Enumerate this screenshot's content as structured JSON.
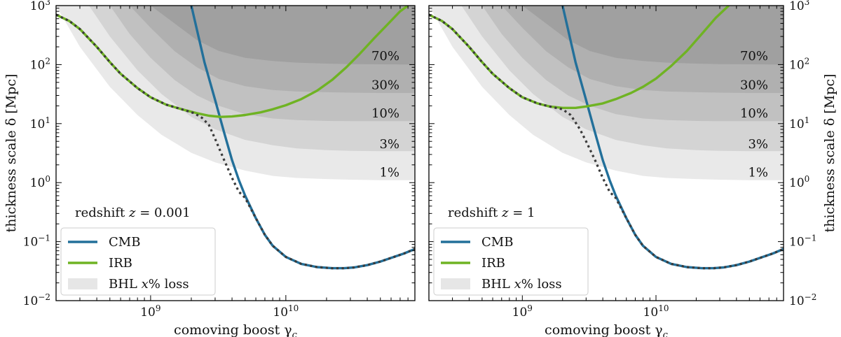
{
  "colors": {
    "cmb": "#23709a",
    "irb": "#6fb323",
    "total": "#3a3a3a",
    "band_fill": "#000000",
    "frame": "#000000",
    "legend_patch": "#e6e6e6"
  },
  "chart_data": [
    {
      "type": "line",
      "xscale": "log",
      "yscale": "log",
      "xlim": [
        200000000,
        90000000000
      ],
      "ylim": [
        0.01,
        1000
      ],
      "xlabel": "comoving boost γ",
      "xlabel_sub": "c",
      "ylabel": "thickness scale δ [Mpc]",
      "ylabel_side": "left",
      "x_ticks": [
        {
          "value": 1000000000,
          "base": "10",
          "exp": "9"
        },
        {
          "value": 10000000000,
          "base": "10",
          "exp": "10"
        }
      ],
      "y_ticks": [
        {
          "value": 0.01,
          "base": "10",
          "exp": "−2"
        },
        {
          "value": 0.1,
          "base": "10",
          "exp": "−1"
        },
        {
          "value": 1,
          "base": "10",
          "exp": "0"
        },
        {
          "value": 10,
          "base": "10",
          "exp": "1"
        },
        {
          "value": 100,
          "base": "10",
          "exp": "2"
        },
        {
          "value": 1000,
          "base": "10",
          "exp": "3"
        }
      ],
      "redshift_prefix": "redshift ",
      "redshift_var": "z",
      "redshift_value": " = 0.001",
      "bands": [
        {
          "label": "1%",
          "label_y": 1.5,
          "x": [
            200000000,
            300000000,
            500000000,
            800000000,
            1200000000,
            2000000000,
            3000000000,
            5000000000,
            8000000000,
            12000000000,
            20000000000,
            30000000000,
            50000000000,
            90000000000
          ],
          "y": [
            1000,
            200,
            42,
            14,
            6.5,
            3.2,
            2.2,
            1.6,
            1.3,
            1.2,
            1.15,
            1.12,
            1.1,
            1.1
          ]
        },
        {
          "label": "3%",
          "label_y": 4.5,
          "x": [
            350000000,
            500000000,
            800000000,
            1200000000,
            2000000000,
            3000000000,
            5000000000,
            8000000000,
            12000000000,
            20000000000,
            30000000000,
            50000000000,
            90000000000
          ],
          "y": [
            1000,
            300,
            80,
            32,
            13,
            8,
            5.3,
            4.3,
            3.8,
            3.55,
            3.45,
            3.4,
            3.4
          ]
        },
        {
          "label": "10%",
          "label_y": 15,
          "x": [
            500000000,
            700000000,
            1000000000,
            1500000000,
            2200000000,
            3200000000,
            5000000000,
            8000000000,
            12000000000,
            20000000000,
            30000000000,
            50000000000,
            90000000000
          ],
          "y": [
            1000,
            330,
            130,
            55,
            30,
            20,
            14.5,
            12.2,
            11.5,
            11.1,
            11,
            11,
            11
          ]
        },
        {
          "label": "30%",
          "label_y": 45,
          "x": [
            700000000,
            1000000000,
            1500000000,
            2200000000,
            3200000000,
            5000000000,
            8000000000,
            12000000000,
            20000000000,
            30000000000,
            50000000000,
            90000000000
          ],
          "y": [
            1000,
            420,
            170,
            90,
            57,
            43,
            37,
            35,
            34,
            33.5,
            33,
            33
          ]
        },
        {
          "label": "70%",
          "label_y": 140,
          "x": [
            1000000000,
            1500000000,
            2200000000,
            3200000000,
            5000000000,
            8000000000,
            12000000000,
            20000000000,
            30000000000,
            50000000000,
            90000000000
          ],
          "y": [
            1000,
            500,
            260,
            170,
            130,
            115,
            108,
            104,
            102,
            101,
            100
          ]
        }
      ],
      "series": [
        {
          "name": "CMB",
          "role": "cmb",
          "x": [
            2000000000,
            2500000000,
            3000000000,
            3500000000,
            4000000000,
            4500000000,
            5000000000,
            6000000000,
            7000000000,
            8000000000,
            10000000000,
            13000000000,
            17000000000,
            22000000000,
            27000000000,
            32000000000,
            40000000000,
            50000000000,
            60000000000,
            75000000000,
            90000000000
          ],
          "y": [
            1000,
            110,
            25,
            7,
            2.4,
            1.1,
            0.6,
            0.25,
            0.13,
            0.085,
            0.055,
            0.042,
            0.037,
            0.0355,
            0.0355,
            0.0365,
            0.04,
            0.046,
            0.053,
            0.063,
            0.075
          ]
        },
        {
          "name": "IRB",
          "role": "irb",
          "x": [
            200000000,
            250000000,
            300000000,
            400000000,
            500000000,
            600000000,
            800000000,
            1000000000,
            1300000000,
            1700000000,
            2200000000,
            2700000000,
            3300000000,
            4000000000,
            5000000000,
            6500000000,
            8000000000,
            10000000000,
            13000000000,
            17000000000,
            22000000000,
            28000000000,
            35000000000,
            45000000000,
            55000000000,
            70000000000,
            80000000000
          ],
          "y": [
            700,
            550,
            400,
            200,
            110,
            70,
            40,
            28,
            21,
            17.5,
            15,
            13.6,
            13,
            13.2,
            14,
            15.5,
            17.5,
            20.5,
            26,
            36,
            55,
            90,
            150,
            280,
            450,
            800,
            1000
          ]
        },
        {
          "name": "total",
          "role": "total",
          "dashed": true,
          "x": [
            200000000,
            250000000,
            300000000,
            400000000,
            500000000,
            600000000,
            800000000,
            1000000000,
            1300000000,
            1700000000,
            2100000000,
            2400000000,
            2700000000,
            3000000000,
            3500000000,
            4000000000,
            4500000000,
            5000000000,
            6000000000,
            7000000000,
            8000000000,
            10000000000,
            13000000000,
            17000000000,
            22000000000,
            27000000000,
            32000000000,
            40000000000,
            50000000000,
            60000000000,
            75000000000,
            90000000000
          ],
          "y": [
            700,
            550,
            400,
            200,
            110,
            70,
            40,
            28,
            21,
            17.5,
            15,
            12.5,
            9.5,
            5.5,
            2.4,
            1.2,
            0.7,
            0.55,
            0.25,
            0.13,
            0.085,
            0.055,
            0.042,
            0.037,
            0.0355,
            0.0355,
            0.0365,
            0.04,
            0.046,
            0.053,
            0.063,
            0.075
          ]
        }
      ],
      "legend": [
        {
          "label": "CMB",
          "kind": "line",
          "role": "cmb"
        },
        {
          "label": "IRB",
          "kind": "line",
          "role": "irb"
        },
        {
          "label": "BHL x% loss",
          "kind": "patch",
          "role": "band"
        }
      ]
    },
    {
      "type": "line",
      "xscale": "log",
      "yscale": "log",
      "xlim": [
        200000000,
        90000000000
      ],
      "ylim": [
        0.01,
        1000
      ],
      "xlabel": "comoving boost γ",
      "xlabel_sub": "c",
      "ylabel": "thickness scale δ [Mpc]",
      "ylabel_side": "right",
      "x_ticks": [
        {
          "value": 1000000000,
          "base": "10",
          "exp": "9"
        },
        {
          "value": 10000000000,
          "base": "10",
          "exp": "10"
        }
      ],
      "y_ticks": [
        {
          "value": 0.01,
          "base": "10",
          "exp": "−2"
        },
        {
          "value": 0.1,
          "base": "10",
          "exp": "−1"
        },
        {
          "value": 1,
          "base": "10",
          "exp": "0"
        },
        {
          "value": 10,
          "base": "10",
          "exp": "1"
        },
        {
          "value": 100,
          "base": "10",
          "exp": "2"
        },
        {
          "value": 1000,
          "base": "10",
          "exp": "3"
        }
      ],
      "redshift_prefix": "redshift ",
      "redshift_var": "z",
      "redshift_value": " = 1",
      "bands": [
        {
          "label": "1%",
          "label_y": 1.5,
          "x": [
            200000000,
            300000000,
            500000000,
            800000000,
            1200000000,
            2000000000,
            3000000000,
            5000000000,
            8000000000,
            12000000000,
            20000000000,
            30000000000,
            50000000000,
            90000000000
          ],
          "y": [
            1000,
            200,
            42,
            14,
            6.5,
            3.2,
            2.2,
            1.6,
            1.3,
            1.2,
            1.15,
            1.12,
            1.1,
            1.1
          ]
        },
        {
          "label": "3%",
          "label_y": 4.5,
          "x": [
            350000000,
            500000000,
            800000000,
            1200000000,
            2000000000,
            3000000000,
            5000000000,
            8000000000,
            12000000000,
            20000000000,
            30000000000,
            50000000000,
            90000000000
          ],
          "y": [
            1000,
            300,
            80,
            32,
            13,
            8,
            5.3,
            4.3,
            3.8,
            3.55,
            3.45,
            3.4,
            3.4
          ]
        },
        {
          "label": "10%",
          "label_y": 15,
          "x": [
            500000000,
            700000000,
            1000000000,
            1500000000,
            2200000000,
            3200000000,
            5000000000,
            8000000000,
            12000000000,
            20000000000,
            30000000000,
            50000000000,
            90000000000
          ],
          "y": [
            1000,
            330,
            130,
            55,
            30,
            20,
            14.5,
            12.2,
            11.5,
            11.1,
            11,
            11,
            11
          ]
        },
        {
          "label": "30%",
          "label_y": 45,
          "x": [
            700000000,
            1000000000,
            1500000000,
            2200000000,
            3200000000,
            5000000000,
            8000000000,
            12000000000,
            20000000000,
            30000000000,
            50000000000,
            90000000000
          ],
          "y": [
            1000,
            420,
            170,
            90,
            57,
            43,
            37,
            35,
            34,
            33.5,
            33,
            33
          ]
        },
        {
          "label": "70%",
          "label_y": 140,
          "x": [
            1000000000,
            1500000000,
            2200000000,
            3200000000,
            5000000000,
            8000000000,
            12000000000,
            20000000000,
            30000000000,
            50000000000,
            90000000000
          ],
          "y": [
            1000,
            500,
            260,
            170,
            130,
            115,
            108,
            104,
            102,
            101,
            100
          ]
        }
      ],
      "series": [
        {
          "name": "CMB",
          "role": "cmb",
          "x": [
            2000000000,
            2500000000,
            3000000000,
            3500000000,
            4000000000,
            4500000000,
            5000000000,
            6000000000,
            7000000000,
            8000000000,
            10000000000,
            13000000000,
            17000000000,
            22000000000,
            27000000000,
            32000000000,
            40000000000,
            50000000000,
            60000000000,
            75000000000,
            90000000000
          ],
          "y": [
            1000,
            110,
            25,
            7,
            2.4,
            1.1,
            0.6,
            0.25,
            0.13,
            0.085,
            0.055,
            0.042,
            0.037,
            0.0355,
            0.0355,
            0.0365,
            0.04,
            0.046,
            0.053,
            0.063,
            0.075
          ]
        },
        {
          "name": "IRB",
          "role": "irb",
          "x": [
            200000000,
            250000000,
            300000000,
            400000000,
            500000000,
            600000000,
            800000000,
            1000000000,
            1300000000,
            1600000000,
            2000000000,
            2500000000,
            3000000000,
            4000000000,
            5000000000,
            6500000000,
            8000000000,
            10000000000,
            13000000000,
            17000000000,
            22000000000,
            28000000000,
            35000000000
          ],
          "y": [
            700,
            550,
            400,
            200,
            110,
            70,
            40,
            28,
            22,
            19.5,
            18.5,
            18.5,
            19.5,
            22,
            26,
            33,
            42,
            58,
            95,
            170,
            330,
            620,
            1000
          ]
        },
        {
          "name": "total",
          "role": "total",
          "dashed": true,
          "x": [
            200000000,
            250000000,
            300000000,
            400000000,
            500000000,
            600000000,
            800000000,
            1000000000,
            1300000000,
            1600000000,
            2000000000,
            2300000000,
            2700000000,
            3000000000,
            3500000000,
            4000000000,
            4500000000,
            5000000000,
            6000000000,
            7000000000,
            8000000000,
            10000000000,
            13000000000,
            17000000000,
            22000000000,
            27000000000,
            32000000000,
            40000000000,
            50000000000,
            60000000000,
            75000000000,
            90000000000
          ],
          "y": [
            700,
            550,
            400,
            200,
            110,
            70,
            40,
            28,
            22,
            19.5,
            17.5,
            14,
            8,
            5,
            2.4,
            1.2,
            0.7,
            0.55,
            0.25,
            0.13,
            0.085,
            0.055,
            0.042,
            0.037,
            0.0355,
            0.0355,
            0.0365,
            0.04,
            0.046,
            0.053,
            0.063,
            0.075
          ]
        }
      ],
      "legend": [
        {
          "label": "CMB",
          "kind": "line",
          "role": "cmb"
        },
        {
          "label": "IRB",
          "kind": "line",
          "role": "irb"
        },
        {
          "label": "BHL x% loss",
          "kind": "patch",
          "role": "band"
        }
      ]
    }
  ]
}
